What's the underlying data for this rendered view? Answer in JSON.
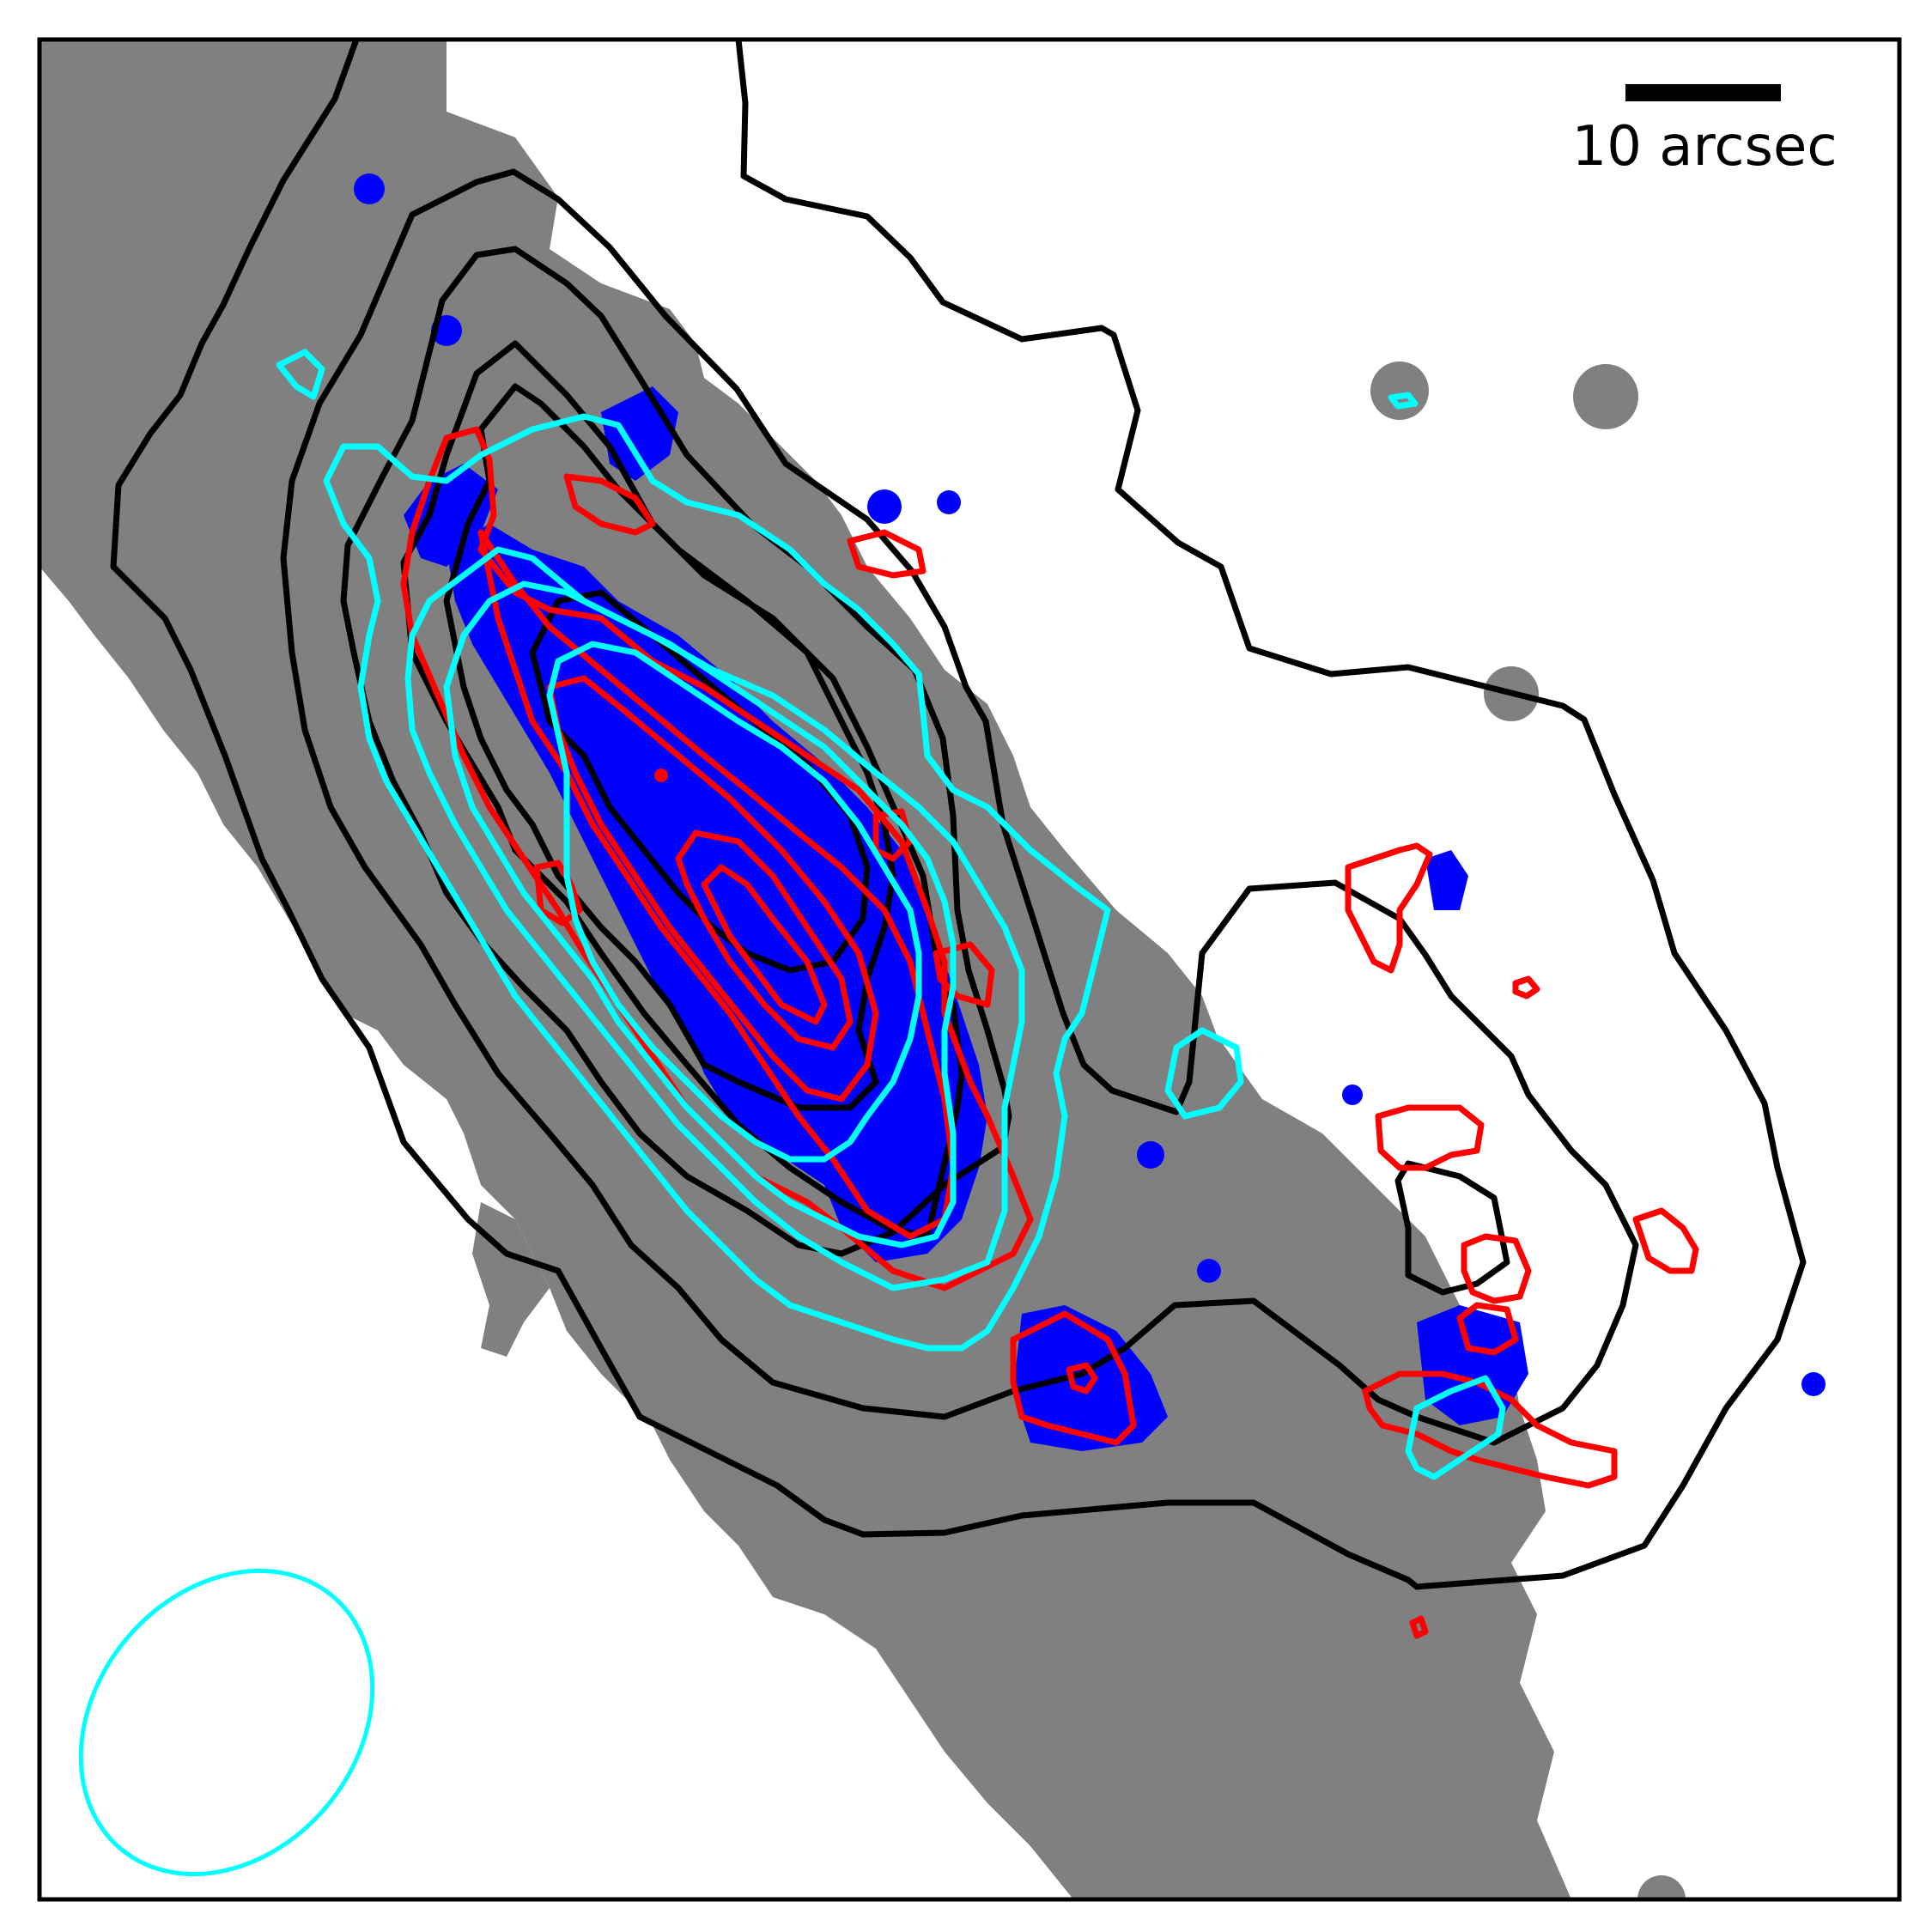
{
  "scale_bar": {
    "label": "10 arcsec"
  },
  "colors": {
    "background": "#ffffff",
    "frame": "#000000",
    "gray_emission": "#808080",
    "blue_emission": "#0000ff",
    "black_contours": "#000000",
    "red_contours": "#ff0000",
    "cyan_contours": "#00ffff",
    "beam": "#00ffff"
  },
  "legend_items": [
    "beam-ellipse",
    "scale-bar"
  ]
}
